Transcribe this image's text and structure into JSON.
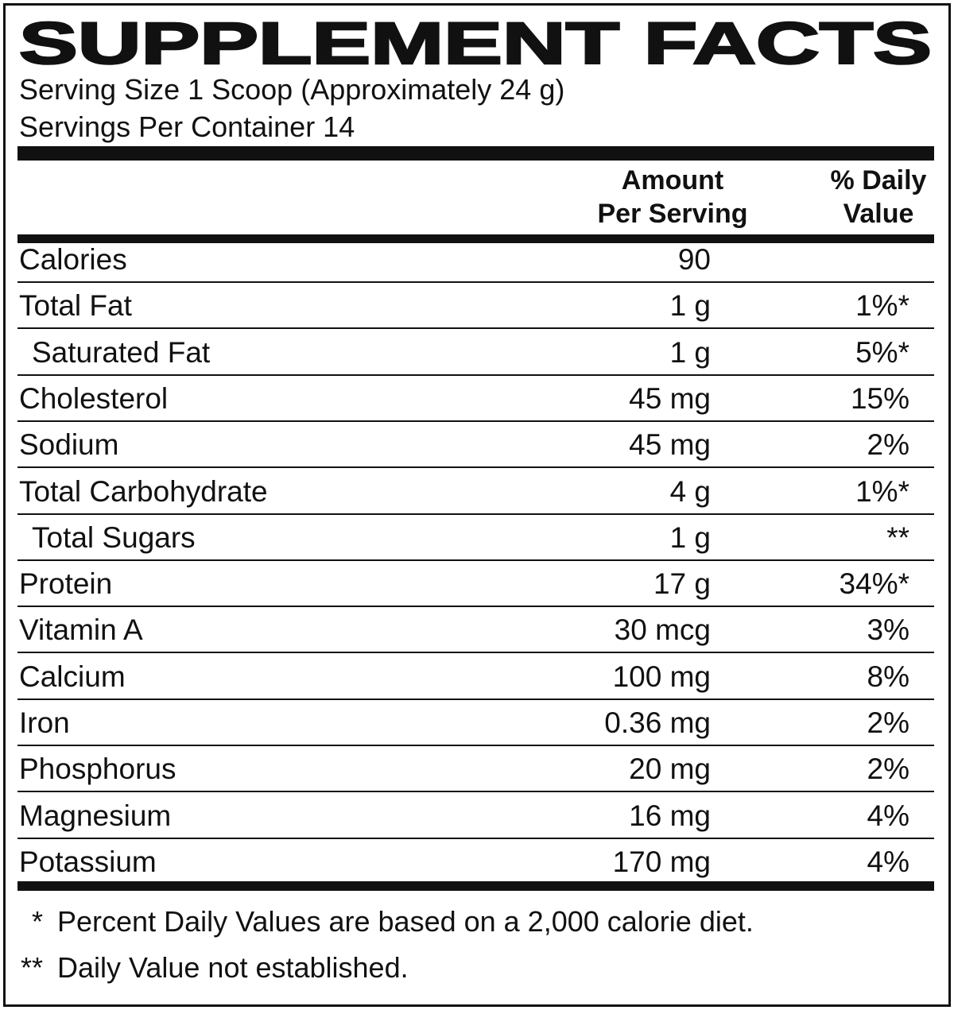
{
  "title": "SUPPLEMENT FACTS",
  "serving_size": "Serving Size 1 Scoop (Approximately 24 g)",
  "servings_per_container": "Servings Per Container 14",
  "header": {
    "amount": [
      "Amount",
      "Per Serving"
    ],
    "daily_value": [
      "% Daily",
      "Value"
    ]
  },
  "rows": [
    {
      "name": "Calories",
      "amount": "90",
      "dv": ""
    },
    {
      "name": "Total Fat",
      "amount": "1 g",
      "dv": "1%*"
    },
    {
      "name": "Saturated Fat",
      "amount": "1 g",
      "dv": "5%*",
      "indent": true
    },
    {
      "name": "Cholesterol",
      "amount": "45 mg",
      "dv": "15%"
    },
    {
      "name": "Sodium",
      "amount": "45 mg",
      "dv": "2%"
    },
    {
      "name": "Total Carbohydrate",
      "amount": "4 g",
      "dv": "1%*"
    },
    {
      "name": "Total Sugars",
      "amount": "1 g",
      "dv": "**",
      "indent": true
    },
    {
      "name": "Protein",
      "amount": "17 g",
      "dv": "34%*"
    },
    {
      "name": "Vitamin A",
      "amount": "30 mcg",
      "dv": "3%"
    },
    {
      "name": "Calcium",
      "amount": "100 mg",
      "dv": "8%"
    },
    {
      "name": "Iron",
      "amount": "0.36 mg",
      "dv": "2%"
    },
    {
      "name": "Phosphorus",
      "amount": "20 mg",
      "dv": "2%"
    },
    {
      "name": "Magnesium",
      "amount": "16 mg",
      "dv": "4%"
    },
    {
      "name": "Potassium",
      "amount": "170 mg",
      "dv": "4%"
    }
  ],
  "footnotes": [
    {
      "mark": "*",
      "text": "Percent Daily Values are based on a 2,000 calorie diet."
    },
    {
      "mark": "**",
      "text": "Daily Value not established."
    }
  ]
}
